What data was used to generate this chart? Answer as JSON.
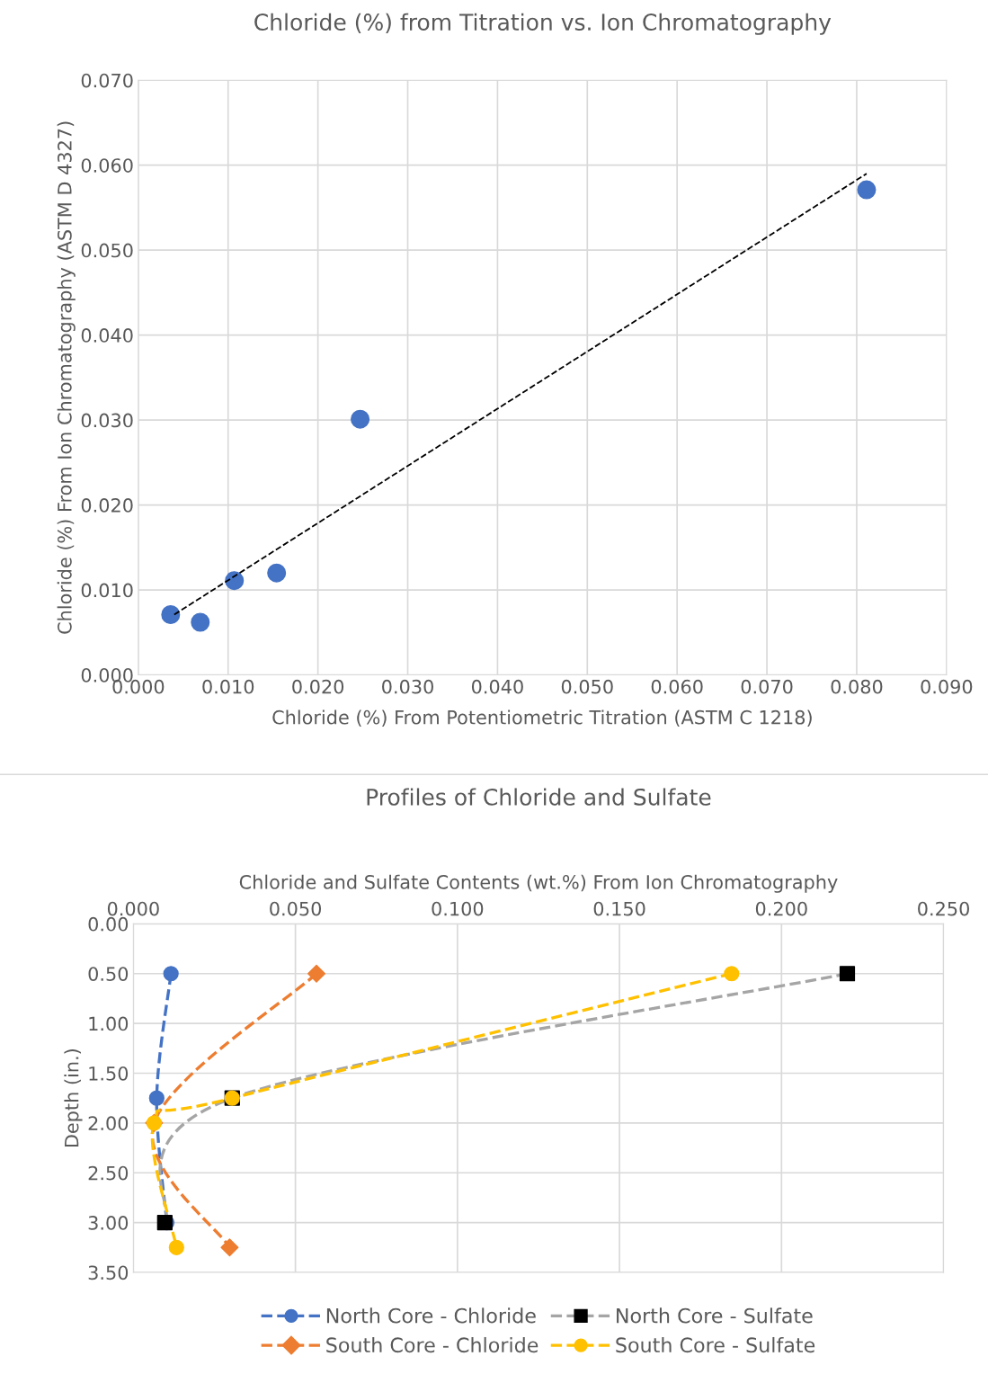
{
  "chart_data": [
    {
      "type": "scatter",
      "title": "Chloride (%) from Titration vs. Ion Chromatography",
      "xlabel": "Chloride (%) From Potentiometric Titration (ASTM C 1218)",
      "ylabel": "Chloride (%) From Ion Chromatography (ASTM D 4327)",
      "xlim": [
        0,
        0.09
      ],
      "xticks": [
        {
          "value": 0,
          "label": "0.000"
        },
        {
          "value": 0.01,
          "label": "0.010"
        },
        {
          "value": 0.02,
          "label": "0.020"
        },
        {
          "value": 0.03,
          "label": "0.030"
        },
        {
          "value": 0.04,
          "label": "0.040"
        },
        {
          "value": 0.05,
          "label": "0.050"
        },
        {
          "value": 0.06,
          "label": "0.060"
        },
        {
          "value": 0.07,
          "label": "0.070"
        },
        {
          "value": 0.08,
          "label": "0.080"
        },
        {
          "value": 0.09,
          "label": "0.090"
        }
      ],
      "ylim": [
        0,
        0.07
      ],
      "yticks": [
        {
          "value": 0,
          "label": "0.000"
        },
        {
          "value": 0.01,
          "label": "0.010"
        },
        {
          "value": 0.02,
          "label": "0.020"
        },
        {
          "value": 0.03,
          "label": "0.030"
        },
        {
          "value": 0.04,
          "label": "0.040"
        },
        {
          "value": 0.05,
          "label": "0.050"
        },
        {
          "value": 0.06,
          "label": "0.060"
        },
        {
          "value": 0.07,
          "label": "0.070"
        }
      ],
      "grid": true,
      "legend": false,
      "series": [
        {
          "type": "scatter",
          "color": "#4472c4",
          "marker": "circle",
          "x": [
            0.0036,
            0.0069,
            0.0107,
            0.0154,
            0.0247,
            0.0811
          ],
          "values": [
            0.0071,
            0.0062,
            0.0111,
            0.012,
            0.0301,
            0.0571
          ]
        },
        {
          "type": "line",
          "color": "#000000",
          "marker": "none",
          "line_style": "dashed",
          "x": [
            0.004,
            0.0811
          ],
          "values": [
            0.0071,
            0.059
          ]
        }
      ]
    },
    {
      "type": "line",
      "title": "Profiles of Chloride and Sulfate",
      "xlabel": "Chloride and Sulfate Contents (wt.%) From Ion Chromatography",
      "ylabel": "Depth (in.)",
      "xlim": [
        0,
        0.25
      ],
      "xticks": [
        {
          "value": 0,
          "label": "0.000"
        },
        {
          "value": 0.05,
          "label": "0.050"
        },
        {
          "value": 0.1,
          "label": "0.100"
        },
        {
          "value": 0.15,
          "label": "0.150"
        },
        {
          "value": 0.2,
          "label": "0.200"
        },
        {
          "value": 0.25,
          "label": "0.250"
        }
      ],
      "ylim": [
        3.5,
        0
      ],
      "yticks": [
        {
          "value": 0,
          "label": "0.00"
        },
        {
          "value": 0.5,
          "label": "0.50"
        },
        {
          "value": 1,
          "label": "1.00"
        },
        {
          "value": 1.5,
          "label": "1.50"
        },
        {
          "value": 2,
          "label": "2.00"
        },
        {
          "value": 2.5,
          "label": "2.50"
        },
        {
          "value": 3,
          "label": "3.00"
        },
        {
          "value": 3.5,
          "label": "3.50"
        }
      ],
      "grid": true,
      "legend": "bottom",
      "line_style": "dashed",
      "series": [
        {
          "name": "North Core - Chloride",
          "color": "#4472c4",
          "marker": "circle",
          "x": [
            0.0116,
            0.0072,
            0.0103
          ],
          "values": [
            0.5,
            1.75,
            3.0
          ]
        },
        {
          "name": "South Core - Chloride",
          "color": "#ed7d31",
          "marker": "diamond",
          "x": [
            0.0565,
            0.0064,
            0.0297
          ],
          "values": [
            0.5,
            2.0,
            3.25
          ]
        },
        {
          "name": "North Core - Sulfate",
          "color": "#a5a5a5",
          "colors": [
            "#000000",
            "#000000",
            "#000000"
          ],
          "marker": "square",
          "x": [
            0.2203,
            0.0305,
            0.0097
          ],
          "values": [
            0.5,
            1.75,
            3.0
          ]
        },
        {
          "name": "South Core - Sulfate",
          "color": "#ffc000",
          "marker": "circle",
          "x": [
            0.1846,
            0.0305,
            0.0064,
            0.0133
          ],
          "values": [
            0.5,
            1.75,
            2.0,
            3.25
          ]
        }
      ]
    }
  ]
}
